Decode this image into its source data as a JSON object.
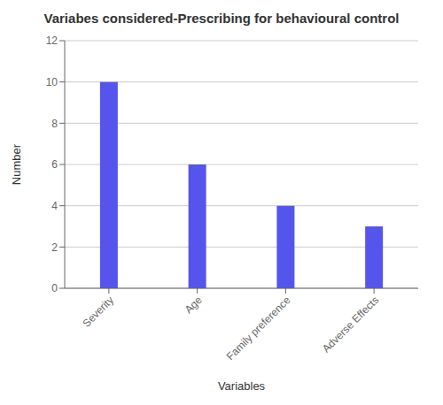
{
  "chart_data": {
    "type": "bar",
    "title": "Variabes considered-Prescribing for behavioural control",
    "categories": [
      "Severity",
      "Age",
      "Family preference",
      "Adverse Effects"
    ],
    "values": [
      10,
      6,
      4,
      3
    ],
    "color": "#5555ee",
    "xlabel": "Variables",
    "ylabel": "Number",
    "ylim": [
      0,
      12
    ],
    "yticks": [
      0,
      2,
      4,
      6,
      8,
      10,
      12
    ],
    "grid": true
  }
}
